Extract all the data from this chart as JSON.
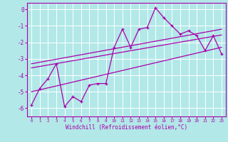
{
  "xlabel": "Windchill (Refroidissement éolien,°C)",
  "ylabel": "",
  "background_color": "#b2e8e8",
  "grid_color": "#ffffff",
  "line_color": "#aa00aa",
  "xlim": [
    -0.5,
    23.5
  ],
  "ylim": [
    -6.5,
    0.4
  ],
  "yticks": [
    0,
    -1,
    -2,
    -3,
    -4,
    -5,
    -6
  ],
  "xticks": [
    0,
    1,
    2,
    3,
    4,
    5,
    6,
    7,
    8,
    9,
    10,
    11,
    12,
    13,
    14,
    15,
    16,
    17,
    18,
    19,
    20,
    21,
    22,
    23
  ],
  "series": {
    "data_line": [
      -5.8,
      -4.8,
      -4.2,
      -3.3,
      -5.9,
      -5.3,
      -5.6,
      -4.6,
      -4.5,
      -4.5,
      -2.3,
      -1.2,
      -2.3,
      -1.2,
      -1.1,
      0.1,
      -0.5,
      -1.0,
      -1.5,
      -1.3,
      -1.6,
      -2.5,
      -1.6,
      -2.7
    ],
    "upper_line": [
      -3.3,
      -1.2
    ],
    "mid_line": [
      -3.55,
      -1.55
    ],
    "lower_line": [
      -5.0,
      -2.3
    ]
  },
  "upper_line_x": [
    0,
    23
  ],
  "mid_line_x": [
    0,
    23
  ],
  "lower_line_x": [
    0,
    23
  ]
}
